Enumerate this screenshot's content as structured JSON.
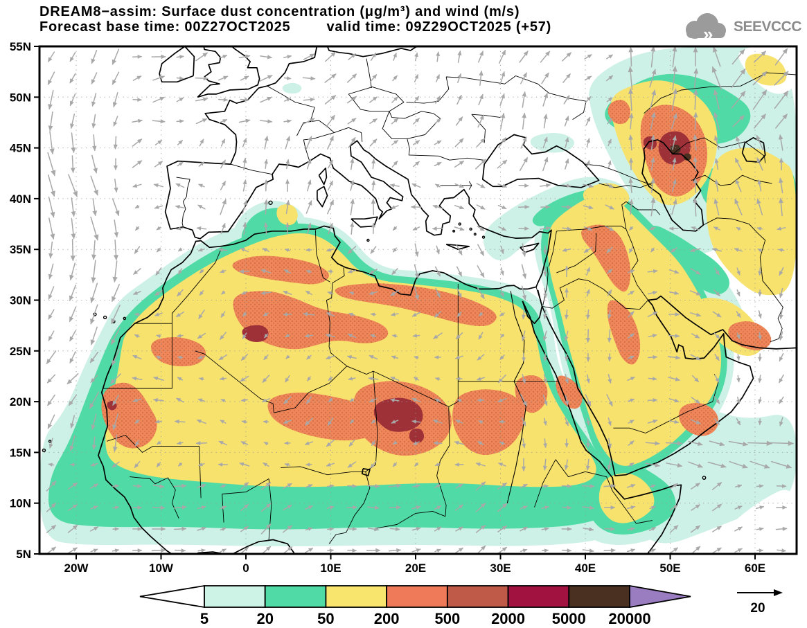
{
  "header": {
    "title": "DREAM8−assim: Surface dust concentration (μg/m³) and wind (m/s)",
    "forecast_base": "Forecast base time: 00Z27OCT2025",
    "valid_time": "valid time: 09Z29OCT2025 (+57)"
  },
  "logo": {
    "text": "SEEVCCC"
  },
  "axes": {
    "lat_labels": [
      {
        "text": "55N",
        "lat": 55
      },
      {
        "text": "50N",
        "lat": 50
      },
      {
        "text": "45N",
        "lat": 45
      },
      {
        "text": "40N",
        "lat": 40
      },
      {
        "text": "35N",
        "lat": 35
      },
      {
        "text": "30N",
        "lat": 30
      },
      {
        "text": "25N",
        "lat": 25
      },
      {
        "text": "20N",
        "lat": 20
      },
      {
        "text": "15N",
        "lat": 15
      },
      {
        "text": "10N",
        "lat": 10
      },
      {
        "text": "5N",
        "lat": 5
      }
    ],
    "lon_labels": [
      {
        "text": "20W",
        "lon": -20
      },
      {
        "text": "10W",
        "lon": -10
      },
      {
        "text": "0",
        "lon": 0
      },
      {
        "text": "10E",
        "lon": 10
      },
      {
        "text": "20E",
        "lon": 20
      },
      {
        "text": "30E",
        "lon": 30
      },
      {
        "text": "40E",
        "lon": 40
      },
      {
        "text": "50E",
        "lon": 50
      },
      {
        "text": "60E",
        "lon": 60
      }
    ]
  },
  "colorbar": {
    "labels": [
      "5",
      "20",
      "50",
      "200",
      "500",
      "2000",
      "5000",
      "20000"
    ],
    "colors": [
      "#ffffff",
      "#cdf2e6",
      "#50dba6",
      "#f8e56e",
      "#ee7a5a",
      "#c05a48",
      "#a11240",
      "#4a3020",
      "#9a7cc0"
    ]
  },
  "wind_reference": {
    "value": "20"
  },
  "palette": {
    "cyan": "#cdf1e6",
    "teal": "#50dba6",
    "yellow": "#f7e26e",
    "salmon": "#ef8659",
    "stipple": "#c2603a",
    "maroon": "#9e3038",
    "dark": "#4a3020",
    "white": "#ffffff",
    "coast": "#000000",
    "arrow": "#a8a8a8",
    "grid": "#9a9a9a"
  }
}
